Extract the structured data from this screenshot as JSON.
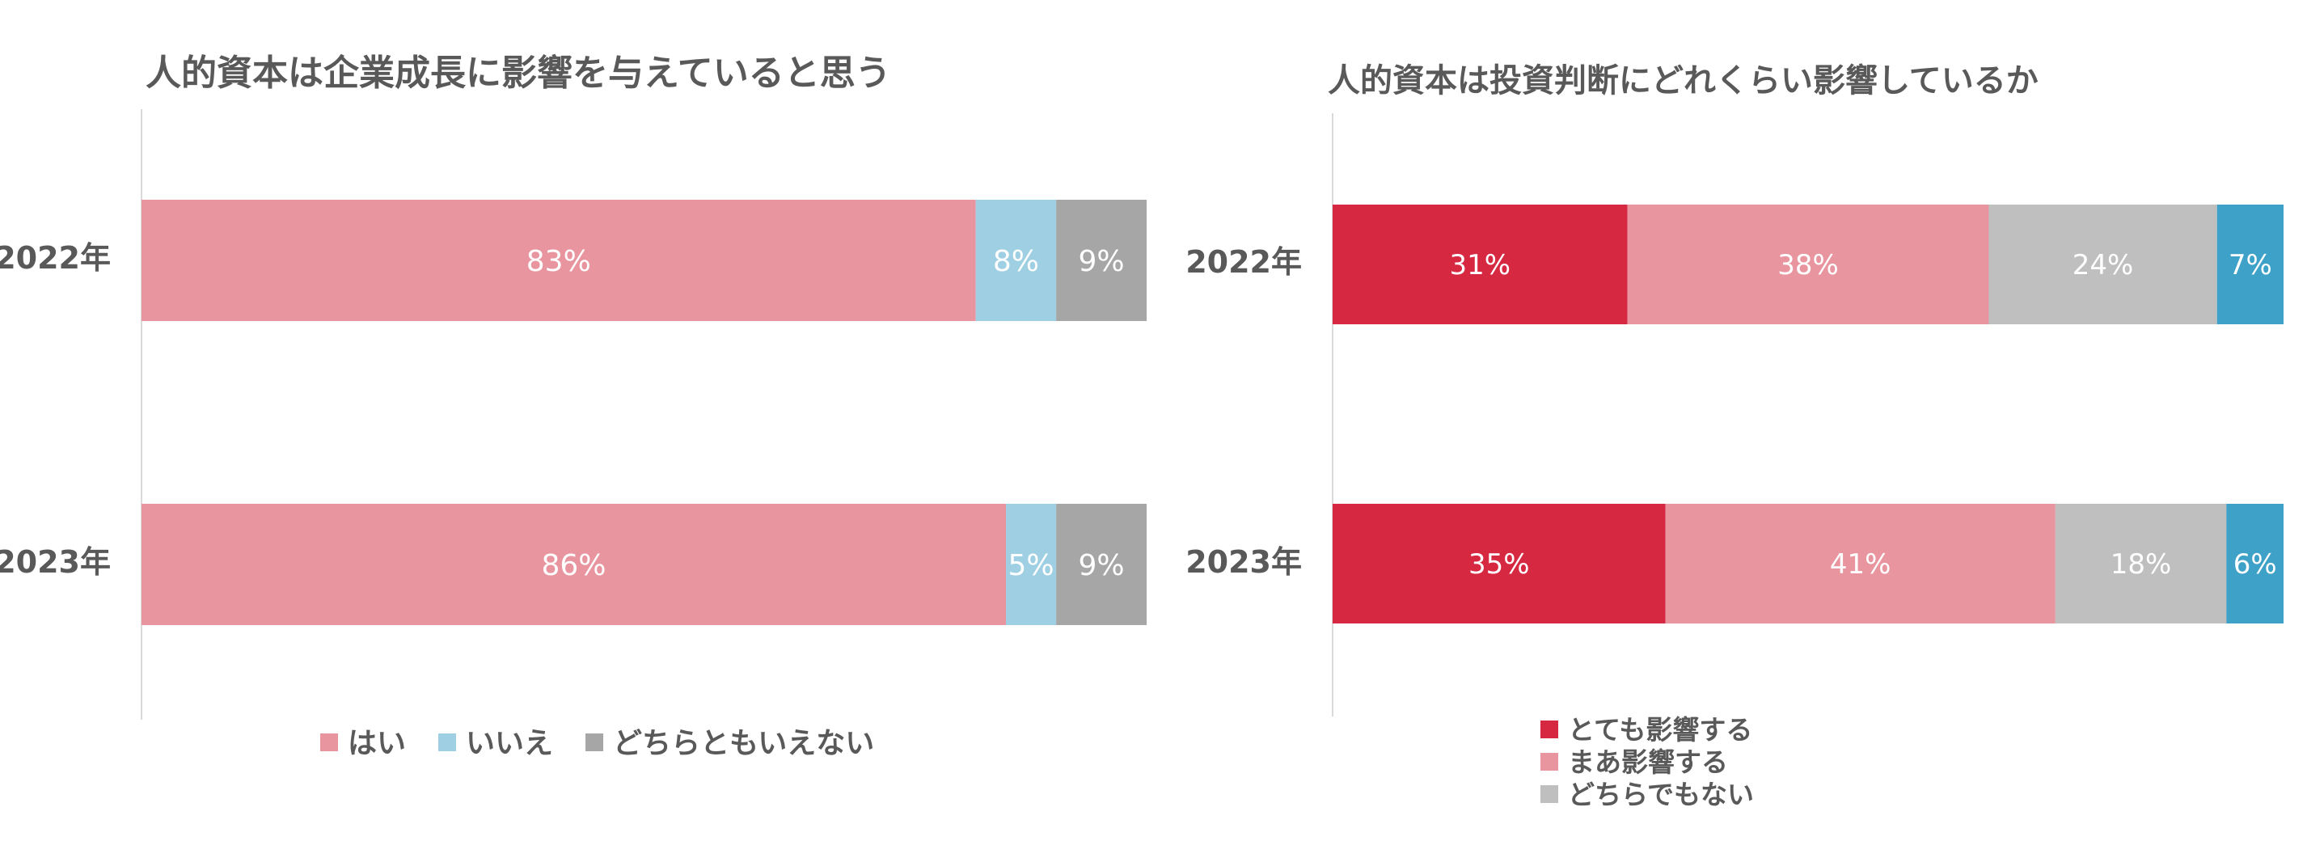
{
  "chart_data": [
    {
      "type": "bar",
      "orientation": "horizontal",
      "stacked": "percent",
      "title": "人的資本は企業成長に影響を与えていると思う",
      "categories": [
        "2022年",
        "2023年"
      ],
      "series": [
        {
          "name": "はい",
          "values": [
            83,
            86
          ],
          "color": "#E8959F",
          "labels": [
            "83%",
            "86%"
          ]
        },
        {
          "name": "いいえ",
          "values": [
            8,
            5
          ],
          "color": "#9FCFE2",
          "labels": [
            "8%",
            "5%"
          ]
        },
        {
          "name": "どちらともいえない",
          "values": [
            9,
            9
          ],
          "color": "#A6A6A6",
          "labels": [
            "9%",
            "9%"
          ]
        }
      ],
      "xlim": [
        0,
        100
      ],
      "xlabel": "",
      "ylabel": "",
      "grid": false,
      "legend": "bottom"
    },
    {
      "type": "bar",
      "orientation": "horizontal",
      "stacked": "percent",
      "title": "人的資本は投資判断にどれくらい影響しているか",
      "categories": [
        "2022年",
        "2023年"
      ],
      "series": [
        {
          "name": "とても影響する",
          "values": [
            31,
            35
          ],
          "color": "#D72842",
          "labels": [
            "31%",
            "35%"
          ]
        },
        {
          "name": "まあ影響する",
          "values": [
            38,
            41
          ],
          "color": "#E8959F",
          "labels": [
            "38%",
            "41%"
          ]
        },
        {
          "name": "どちらでもない",
          "values": [
            24,
            18
          ],
          "color": "#BFBFBF",
          "labels": [
            "24%",
            "18%"
          ]
        },
        {
          "name": "",
          "values": [
            7,
            6
          ],
          "color": "#3DA1C8",
          "labels": [
            "7%",
            "6%"
          ]
        }
      ],
      "xlim": [
        0,
        100
      ],
      "xlabel": "",
      "ylabel": "",
      "grid": false,
      "legend": "bottom-center"
    }
  ]
}
